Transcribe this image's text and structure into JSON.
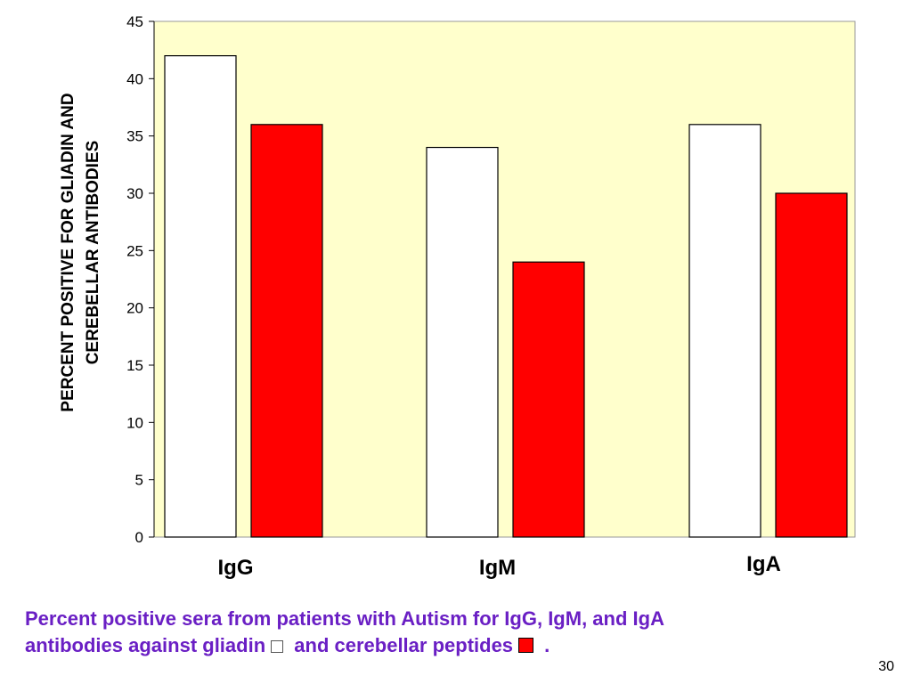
{
  "chart_data": {
    "type": "bar",
    "categories": [
      "IgG",
      "IgM",
      "IgA"
    ],
    "series": [
      {
        "name": "gliadin",
        "color": "#ffffff",
        "values": [
          42,
          34,
          36
        ]
      },
      {
        "name": "cerebellar peptides",
        "color": "#ff0000",
        "values": [
          36,
          24,
          30
        ]
      }
    ],
    "ylabel_lines": [
      "PERCENT POSITIVE FOR GLIADIN AND",
      "CEREBELLAR ANTIBODIES"
    ],
    "ylim": [
      0,
      45
    ],
    "yticks": [
      "0",
      "5",
      "10",
      "15",
      "20",
      "25",
      "30",
      "35",
      "40",
      "45"
    ],
    "plot_background": "#ffffcc",
    "grid": false
  },
  "caption": {
    "line1": "Percent positive sera from patients with Autism for IgG, IgM, and IgA",
    "line2_a": "antibodies against gliadin",
    "line2_b": "and cerebellar peptides",
    "line2_end": ".",
    "color": "#6a1fc4"
  },
  "slide_number": "30"
}
